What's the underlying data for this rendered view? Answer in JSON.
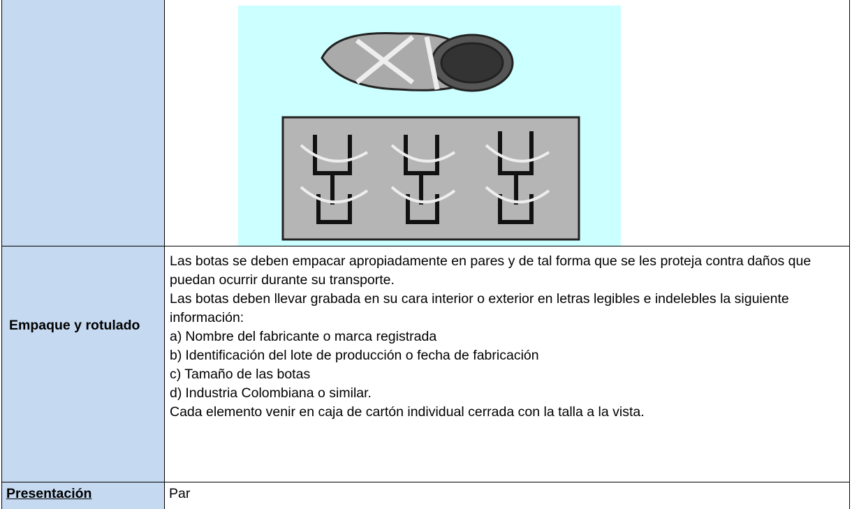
{
  "rows": [
    {
      "label": "Empaque y rotulado",
      "paragraphs": [
        "Las botas se deben empacar apropiadamente en pares y de tal forma que se les proteja contra daños que puedan ocurrir durante su transporte.",
        "Las botas deben llevar grabada en su cara interior o exterior en letras legibles e indelebles la siguiente información:"
      ],
      "list": [
        {
          "marker": "a)",
          "text": "Nombre del fabricante o marca registrada"
        },
        {
          "marker": "b)",
          "text": "Identificación del lote de producción o fecha de fabricación"
        },
        {
          "marker": "c)",
          "text": "Tamaño de las botas"
        },
        {
          "marker": "d)",
          "text": "Industria Colombiana o similar."
        }
      ],
      "closing": "Cada elemento venir en caja de cartón individual cerrada con la talla a la vista."
    },
    {
      "label": "Presentación",
      "value": "Par"
    }
  ]
}
